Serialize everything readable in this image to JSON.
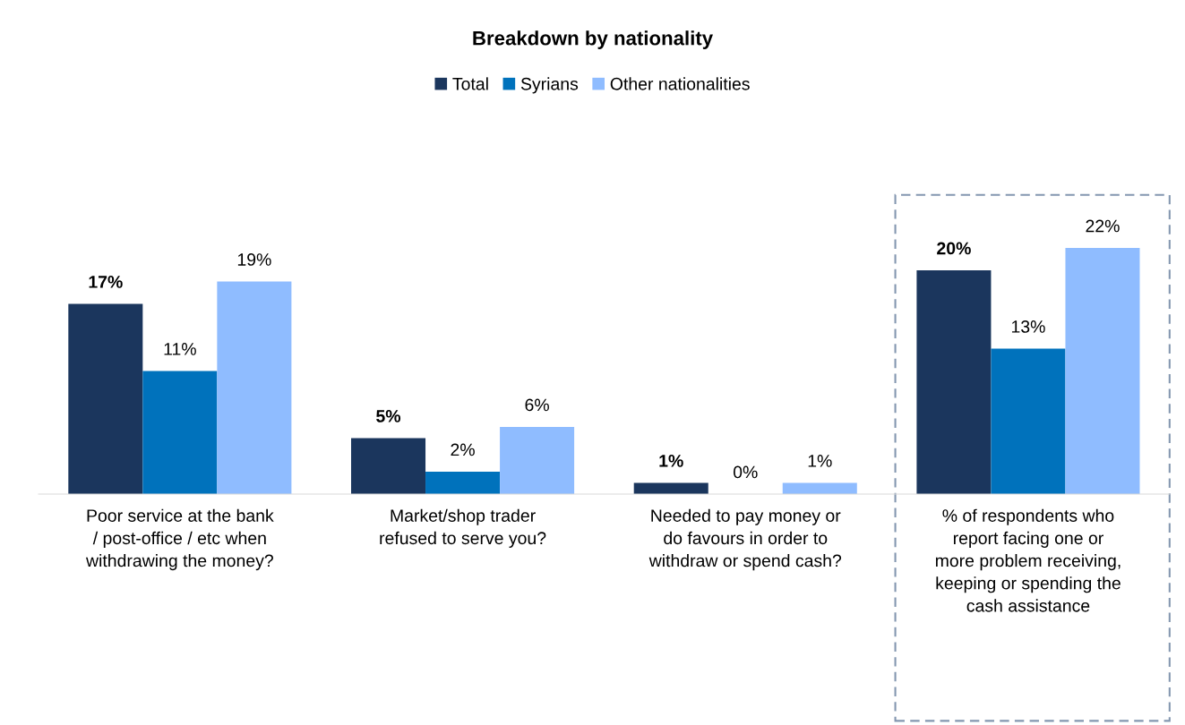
{
  "chart_data": {
    "type": "bar",
    "title": "Breakdown by nationality",
    "categories": [
      "Poor service at the bank\n/ post-office / etc when\nwithdrawing the money?",
      "Market/shop trader\nrefused to serve you?",
      "Needed to pay money or\ndo favours in order to\nwithdraw or spend cash?",
      "% of respondents who\nreport facing one or\nmore problem receiving,\nkeeping or spending the\ncash assistance"
    ],
    "series": [
      {
        "name": "Total",
        "color": "#1b365d",
        "values": [
          17,
          5,
          1,
          20
        ],
        "value_labels": [
          "17%",
          "5%",
          "1%",
          "20%"
        ]
      },
      {
        "name": "Syrians",
        "color": "#0072bc",
        "values": [
          11,
          2,
          0,
          13
        ],
        "value_labels": [
          "11%",
          "2%",
          "0%",
          "13%"
        ]
      },
      {
        "name": "Other nationalities",
        "color": "#8fbcff",
        "values": [
          19,
          6,
          1,
          22
        ],
        "value_labels": [
          "19%",
          "6%",
          "1%",
          "22%"
        ]
      }
    ],
    "legend": "top",
    "grid": false
  }
}
